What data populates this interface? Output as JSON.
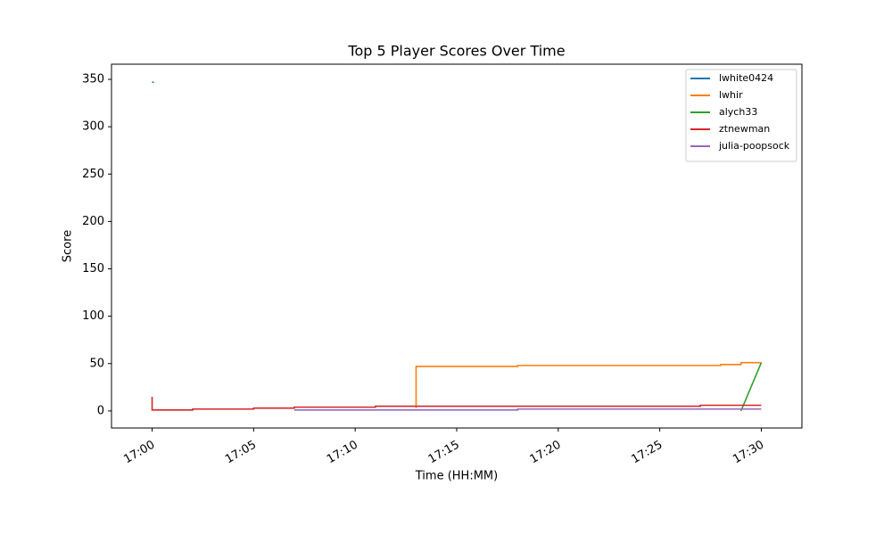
{
  "chart_data": {
    "type": "line",
    "title": "Top 5 Player Scores Over Time",
    "x_label": "Time (HH:MM)",
    "y_label": "Score",
    "xlim": [
      "16:58",
      "17:32"
    ],
    "xticks": [
      "17:00",
      "17:05",
      "17:10",
      "17:15",
      "17:20",
      "17:25",
      "17:30"
    ],
    "ylim": [
      -18,
      366
    ],
    "yticks": [
      0,
      50,
      100,
      150,
      200,
      250,
      300,
      350
    ],
    "grid": false,
    "legend": "upper right",
    "series": [
      {
        "name": "lwhite0424",
        "color": "#1f77b4",
        "x": [
          "17:00"
        ],
        "values": [
          347
        ]
      },
      {
        "name": "lwhir",
        "color": "#ff7f0e",
        "x": [
          "17:13",
          "17:13",
          "17:13",
          "17:18",
          "17:18",
          "17:28",
          "17:28",
          "17:29",
          "17:29",
          "17:30"
        ],
        "values": [
          3,
          46,
          47,
          47,
          48,
          48,
          49,
          49,
          51,
          51
        ]
      },
      {
        "name": "alych33",
        "color": "#2ca02c",
        "x": [
          "17:29",
          "17:30"
        ],
        "values": [
          0,
          51
        ]
      },
      {
        "name": "ztnewman",
        "color": "#d62728",
        "x": [
          "17:00",
          "17:00",
          "17:02",
          "17:02",
          "17:05",
          "17:05",
          "17:07",
          "17:07",
          "17:11",
          "17:11",
          "17:27",
          "17:27",
          "17:30"
        ],
        "values": [
          15,
          1,
          1,
          2,
          2,
          3,
          3,
          4,
          4,
          5,
          5,
          6,
          6
        ]
      },
      {
        "name": "julia-poopsock",
        "color": "#9467bd",
        "x": [
          "17:07",
          "17:18",
          "17:18",
          "17:30"
        ],
        "values": [
          1,
          1,
          2,
          2
        ]
      }
    ]
  }
}
